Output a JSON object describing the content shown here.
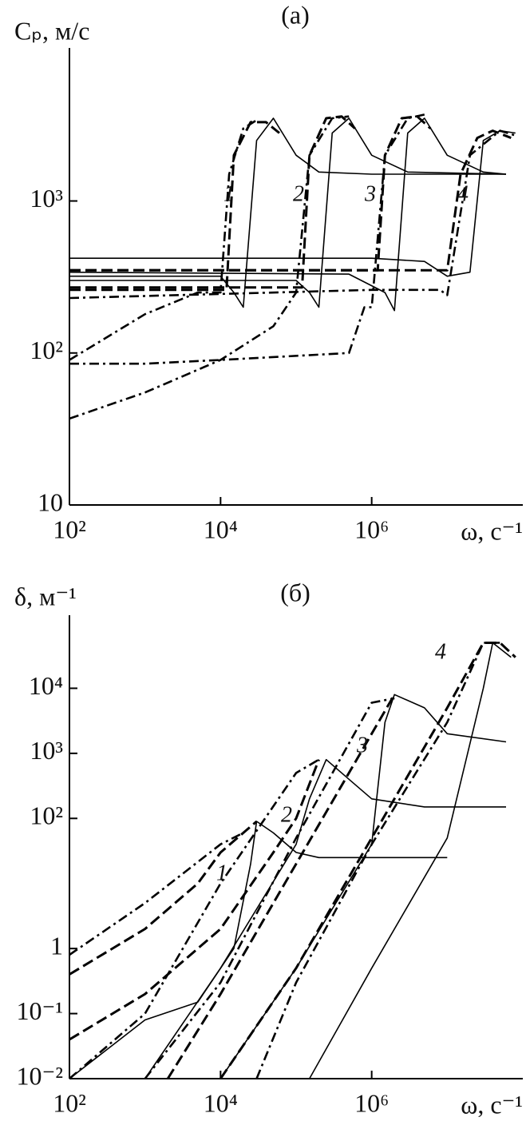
{
  "chart_data": [
    {
      "type": "line",
      "title": "(а)",
      "ylabel": "Cₚ, м/с",
      "xlabel": "ω, с⁻¹",
      "log_x": true,
      "log_y": true,
      "xlim": [
        100,
        100000000
      ],
      "ylim": [
        10,
        9000
      ],
      "xticks": [
        {
          "value": 100,
          "label": "10²"
        },
        {
          "value": 10000,
          "label": "10⁴"
        },
        {
          "value": 1000000,
          "label": "10⁶"
        }
      ],
      "yticks": [
        10,
        {
          "value": 100,
          "label": "10²"
        },
        {
          "value": 1000,
          "label": "10³"
        }
      ],
      "annotations": [
        "1",
        "2",
        "3",
        "4"
      ],
      "series": [
        {
          "style": "solid",
          "color": "#000",
          "x": [
            100,
            10000,
            15000,
            20000,
            30000,
            50000,
            100000,
            200000,
            1000000,
            10000000,
            60000000
          ],
          "values": [
            320,
            320,
            250,
            200,
            2500,
            3500,
            2000,
            1550,
            1500,
            1500,
            1500
          ]
        },
        {
          "style": "solid",
          "color": "#000",
          "x": [
            100,
            100000,
            150000,
            200000,
            300000,
            500000,
            1000000,
            3000000,
            60000000
          ],
          "values": [
            300,
            300,
            250,
            200,
            2800,
            3500,
            2000,
            1550,
            1500
          ]
        },
        {
          "style": "solid",
          "color": "#000",
          "x": [
            100,
            500000,
            1500000,
            2000000,
            3000000,
            5000000,
            10000000,
            30000000,
            60000000
          ],
          "values": [
            340,
            330,
            250,
            190,
            2800,
            3500,
            2000,
            1550,
            1500
          ]
        },
        {
          "style": "solid",
          "color": "#000",
          "x": [
            100,
            1000000,
            5000000,
            10000000,
            20000000,
            30000000,
            50000000,
            80000000
          ],
          "values": [
            420,
            420,
            400,
            320,
            340,
            2500,
            2900,
            2800
          ]
        },
        {
          "style": "dashed",
          "color": "#000",
          "x": [
            100,
            12000,
            15000,
            25000,
            40000,
            60000
          ],
          "values": [
            260,
            260,
            2000,
            3300,
            3300,
            2800
          ]
        },
        {
          "style": "dashed",
          "color": "#000",
          "x": [
            100,
            120000,
            150000,
            250000,
            400000,
            600000
          ],
          "values": [
            270,
            270,
            2000,
            3500,
            3600,
            3000
          ]
        },
        {
          "style": "dashed",
          "color": "#000",
          "x": [
            100,
            1200000,
            1500000,
            2500000,
            4000000,
            6000000
          ],
          "values": [
            350,
            350,
            2000,
            3500,
            3600,
            3000
          ]
        },
        {
          "style": "dashed",
          "color": "#000",
          "x": [
            100,
            10000000,
            15000000,
            25000000,
            40000000,
            70000000
          ],
          "values": [
            350,
            350,
            1500,
            2600,
            2900,
            2600
          ]
        },
        {
          "style": "dashdot",
          "color": "#000",
          "x": [
            100,
            1000,
            5000,
            10000,
            13000,
            20000,
            30000
          ],
          "values": [
            90,
            180,
            250,
            250,
            1500,
            3000,
            3400
          ]
        },
        {
          "style": "dashdot",
          "color": "#000",
          "x": [
            100,
            1000,
            10000,
            50000,
            100000,
            150000,
            300000,
            500000
          ],
          "values": [
            37,
            55,
            90,
            150,
            250,
            2000,
            3500,
            3600
          ]
        },
        {
          "style": "dashdot",
          "color": "#000",
          "x": [
            100,
            1000,
            10000,
            500000,
            800000,
            1000000,
            1500000,
            3000000,
            5000000
          ],
          "values": [
            85,
            85,
            90,
            100,
            200,
            200,
            2000,
            3500,
            3700
          ]
        },
        {
          "style": "dashdot",
          "color": "#000",
          "x": [
            100,
            1000000,
            3000000,
            8000000,
            10000000,
            20000000,
            50000000,
            80000000
          ],
          "values": [
            230,
            260,
            260,
            260,
            240,
            2000,
            2900,
            2700
          ]
        }
      ]
    },
    {
      "type": "line",
      "title": "(б)",
      "ylabel": "δ, м⁻¹",
      "xlabel": "ω, с⁻¹",
      "log_x": true,
      "log_y": true,
      "xlim": [
        100,
        100000000
      ],
      "ylim": [
        0.01,
        100000
      ],
      "xticks": [
        {
          "value": 100,
          "label": "10²"
        },
        {
          "value": 10000,
          "label": "10⁴"
        },
        {
          "value": 1000000,
          "label": "10⁶"
        }
      ],
      "yticks": [
        {
          "value": 0.01,
          "label": "10⁻²"
        },
        {
          "value": 0.1,
          "label": "10⁻¹"
        },
        1,
        {
          "value": 100,
          "label": "10²"
        },
        {
          "value": 1000,
          "label": "10³"
        },
        {
          "value": 10000,
          "label": "10⁴"
        }
      ],
      "annotations": [
        "1",
        "2",
        "3",
        "4"
      ],
      "series": [
        {
          "style": "solid",
          "color": "#000",
          "x": [
            100,
            1000,
            5000,
            15000,
            25000,
            30000,
            50000,
            100000,
            200000,
            10000000
          ],
          "values": [
            0.01,
            0.08,
            0.15,
            1,
            20,
            90,
            60,
            30,
            25,
            25
          ]
        },
        {
          "style": "solid",
          "color": "#000",
          "x": [
            1000,
            10000,
            100000,
            150000,
            250000,
            500000,
            1000000,
            5000000,
            60000000
          ],
          "values": [
            0.01,
            0.5,
            40,
            200,
            800,
            400,
            200,
            150,
            150
          ]
        },
        {
          "style": "solid",
          "color": "#000",
          "x": [
            10000,
            100000,
            1000000,
            1500000,
            2000000,
            5000000,
            10000000,
            60000000
          ],
          "values": [
            0.01,
            0.5,
            40,
            3000,
            8000,
            5000,
            2000,
            1500
          ]
        },
        {
          "style": "solid",
          "color": "#000",
          "x": [
            150000,
            1000000,
            10000000,
            30000000,
            40000000,
            70000000
          ],
          "values": [
            0.01,
            0.5,
            50,
            10000,
            50000,
            30000
          ]
        },
        {
          "style": "dashed",
          "color": "#000",
          "x": [
            100,
            1000,
            5000,
            10000,
            20000,
            30000
          ],
          "values": [
            0.4,
            2,
            10,
            30,
            60,
            90
          ]
        },
        {
          "style": "dashed",
          "color": "#000",
          "x": [
            100,
            1000,
            10000,
            50000,
            100000,
            200000
          ],
          "values": [
            0.04,
            0.2,
            2,
            30,
            100,
            800
          ]
        },
        {
          "style": "dashed",
          "color": "#000",
          "x": [
            2000,
            10000,
            100000,
            1000000,
            2000000
          ],
          "values": [
            0.01,
            0.2,
            20,
            2000,
            8000
          ]
        },
        {
          "style": "dashed",
          "color": "#000",
          "x": [
            10000,
            100000,
            1000000,
            10000000,
            30000000,
            50000000,
            80000000
          ],
          "values": [
            0.01,
            0.5,
            50,
            5000,
            50000,
            50000,
            30000
          ]
        },
        {
          "style": "dashdot",
          "color": "#000",
          "x": [
            100,
            1000,
            10000,
            20000
          ],
          "values": [
            0.8,
            5,
            40,
            60
          ]
        },
        {
          "style": "dashdot",
          "color": "#000",
          "x": [
            100,
            1000,
            10000,
            100000,
            200000
          ],
          "values": [
            0.01,
            0.1,
            10,
            500,
            800
          ]
        },
        {
          "style": "dashdot",
          "color": "#000",
          "x": [
            1000,
            10000,
            100000,
            1000000,
            2000000
          ],
          "values": [
            0.01,
            0.3,
            50,
            6000,
            7000
          ]
        },
        {
          "style": "dashdot",
          "color": "#000",
          "x": [
            30000,
            100000,
            1000000,
            10000000,
            30000000,
            50000000
          ],
          "values": [
            0.01,
            0.3,
            40,
            3000,
            50000,
            50000
          ]
        }
      ]
    }
  ]
}
